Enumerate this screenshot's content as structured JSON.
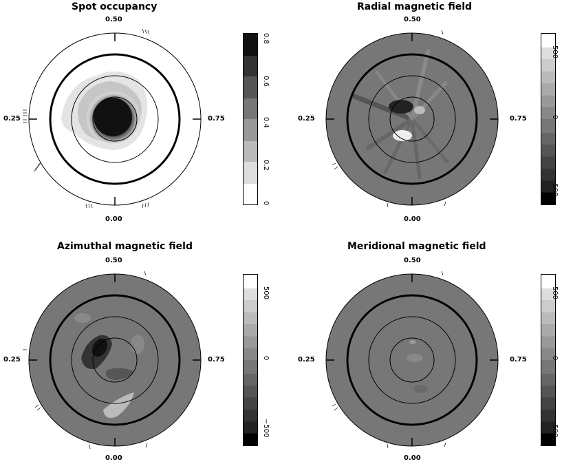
{
  "panels": [
    {
      "title": "Spot occupancy",
      "phase_top": "0.50",
      "phase_left": "0.25",
      "phase_right": "0.75",
      "phase_bottom": "0.00",
      "colorbar_ticks": [
        "0.8",
        "0.6",
        "0.4",
        "0.2",
        "0"
      ],
      "colorbar_direction": "white-to-black"
    },
    {
      "title": "Radial magnetic field",
      "phase_top": "0.50",
      "phase_left": "0.25",
      "phase_right": "0.75",
      "phase_bottom": "0.00",
      "colorbar_ticks": [
        "500",
        "0",
        "−500"
      ],
      "colorbar_direction": "black-to-white"
    },
    {
      "title": "Azimuthal magnetic field",
      "phase_top": "0.50",
      "phase_left": "0.25",
      "phase_right": "0.75",
      "phase_bottom": "0.00",
      "colorbar_ticks": [
        "500",
        "0",
        "−500"
      ],
      "colorbar_direction": "black-to-white"
    },
    {
      "title": "Meridional magnetic field",
      "phase_top": "0.50",
      "phase_left": "0.25",
      "phase_right": "0.75",
      "phase_bottom": "0.00",
      "colorbar_ticks": [
        "500",
        "0",
        "−500"
      ],
      "colorbar_direction": "black-to-white"
    }
  ]
}
